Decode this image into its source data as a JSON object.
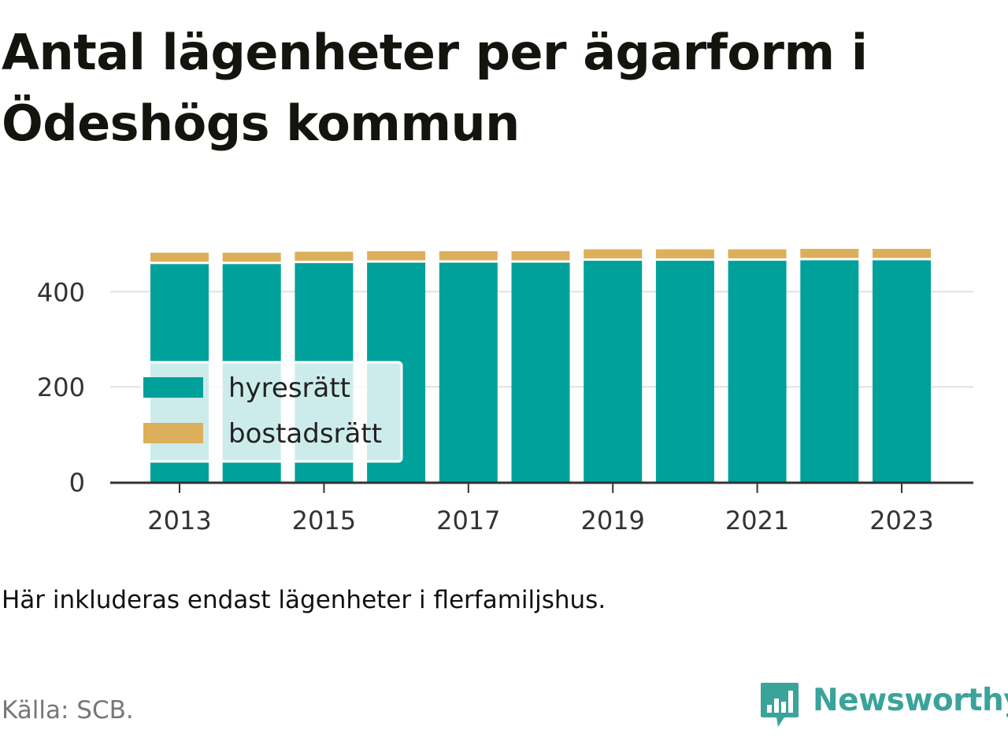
{
  "title": "Antal lägenheter per ägarform i Ödeshögs kommun",
  "note": "Här inkluderas endast lägenheter i flerfamiljshus.",
  "source": "Källa: SCB.",
  "brand": {
    "name": "Newsworthy",
    "logo_icon": "bar-chart-speech-bubble-icon",
    "color": "#3aa39a"
  },
  "chart_data": {
    "type": "bar",
    "stacked": true,
    "categories": [
      "2013",
      "2014",
      "2015",
      "2016",
      "2017",
      "2018",
      "2019",
      "2020",
      "2021",
      "2022",
      "2023"
    ],
    "x_tick_labels": [
      "2013",
      "2015",
      "2017",
      "2019",
      "2021",
      "2023"
    ],
    "series": [
      {
        "name": "hyresrätt",
        "color": "#00a19a",
        "values": [
          458,
          458,
          460,
          461,
          461,
          461,
          465,
          465,
          465,
          466,
          466
        ]
      },
      {
        "name": "bostadsrätt",
        "color": "#dcaf5a",
        "values": [
          24,
          24,
          24,
          24,
          24,
          24,
          24,
          24,
          24,
          24,
          24
        ]
      }
    ],
    "y_ticks": [
      0,
      200,
      400
    ],
    "ylim": [
      0,
      500
    ],
    "grid": true,
    "legend_position": "bottom-left",
    "xlabel": "",
    "ylabel": ""
  }
}
